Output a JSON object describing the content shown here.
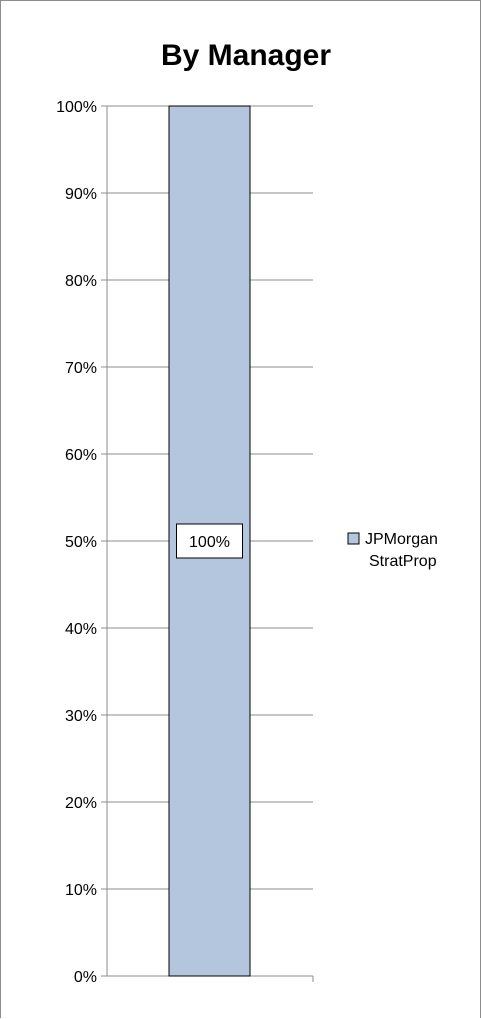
{
  "chart_data": {
    "type": "bar",
    "stacked": true,
    "percent": true,
    "title": "By Manager",
    "xlabel": "",
    "ylabel": "",
    "categories": [
      ""
    ],
    "series": [
      {
        "name": "JPMorgan StratProp",
        "values": [
          100
        ],
        "color": "#b3c6de",
        "data_label": "100%"
      }
    ],
    "ylim": [
      0,
      100
    ],
    "y_ticks": [
      0,
      10,
      20,
      30,
      40,
      50,
      60,
      70,
      80,
      90,
      100
    ],
    "y_tick_labels": [
      "0%",
      "10%",
      "20%",
      "30%",
      "40%",
      "50%",
      "60%",
      "70%",
      "80%",
      "90%",
      "100%"
    ],
    "grid": true,
    "legend_position": "right",
    "legend_lines": [
      "JPMorgan",
      "StratProp"
    ]
  }
}
